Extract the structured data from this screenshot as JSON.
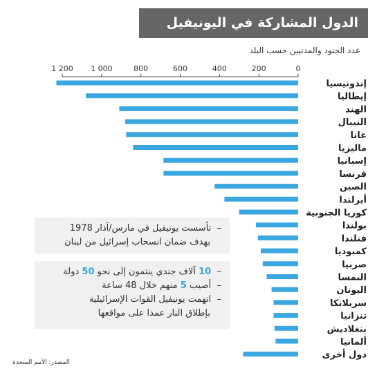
{
  "chart_data": {
    "type": "bar",
    "orientation": "horizontal",
    "title": "الدول المشاركة في اليونيفيل",
    "subtitle": "عدد الجنود والمدنيين حسب البلد",
    "xlim": [
      0,
      1200
    ],
    "x_ticks": [
      0,
      200,
      400,
      600,
      800,
      1000,
      1200
    ],
    "x_tick_labels": [
      "0",
      "200",
      "400",
      "600",
      "800",
      "1 000",
      "1 200"
    ],
    "grid": false,
    "bar_color": "#3ba7e0",
    "categories": [
      "إندونيسيا",
      "إيطاليا",
      "الهند",
      "النيبال",
      "غانا",
      "ماليزيا",
      "إسبانيا",
      "فرنسا",
      "الصين",
      "أيرلندا",
      "كوريا الجنوبية",
      "بولندا",
      "فنلندا",
      "كمبوديا",
      "صربيا",
      "النمسا",
      "اليونان",
      "سريلانكا",
      "تنزانيا",
      "بنغلاديش",
      "ألمانيا",
      "دول أخرى"
    ],
    "values": [
      1230,
      1080,
      910,
      880,
      875,
      840,
      685,
      685,
      425,
      375,
      300,
      215,
      205,
      190,
      180,
      160,
      135,
      125,
      125,
      120,
      115,
      280
    ]
  },
  "notes": {
    "box1": {
      "line1": "تأسست يونيفيل في مارس/آذار 1978",
      "line2": "بهدف ضمان انسحاب إسرائيل من لبنان"
    },
    "box2": {
      "line1_num1": "10",
      "line1_mid": " آلاف جندي ينتمون إلى نحو ",
      "line1_num2": "50",
      "line1_end": " دولة",
      "line2_pre": "أصيب ",
      "line2_num": "5",
      "line2_end": " منهم خلال 48 ساعة",
      "line3": "اتهمت يونيفيل القوات الإسرائيلية",
      "line4": "بإطلاق النار عمدا على مواقعها"
    }
  },
  "source": "المصدر: الأمم المتحدة",
  "colors": {
    "accent": "#3ba7e0",
    "title_bg": "#666666",
    "note_bg": "#f0f0f0"
  }
}
